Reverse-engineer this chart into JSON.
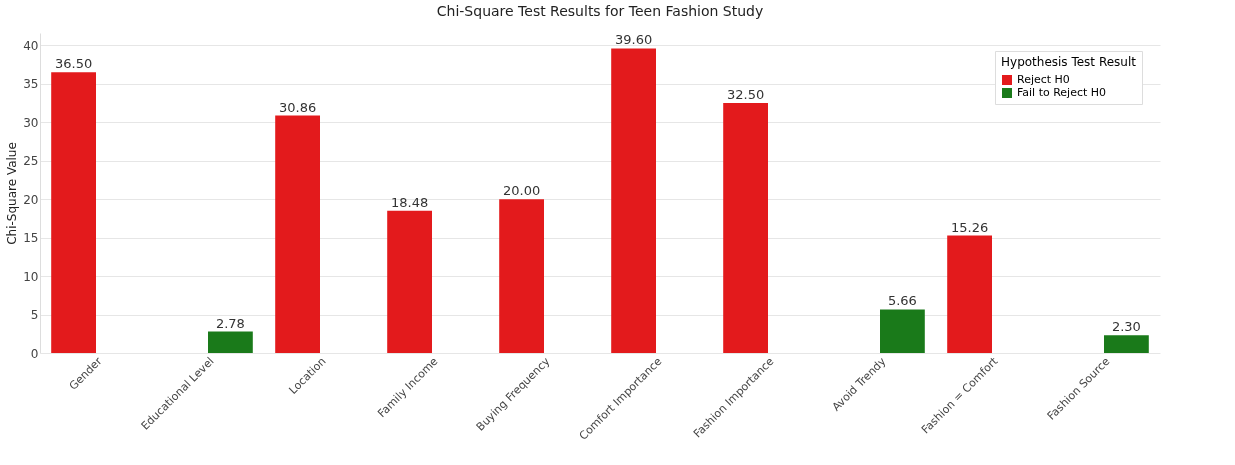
{
  "chart_data": {
    "type": "bar",
    "title": "Chi-Square Test Results for Teen Fashion Study",
    "ylabel": "Chi-Square Value",
    "legend_title": "Hypothesis Test Result",
    "categories": [
      "Gender",
      "Educational Level",
      "Location",
      "Family Income",
      "Buying Frequency",
      "Comfort Importance",
      "Fashion Importance",
      "Avoid Trendy",
      "Fashion = Comfort",
      "Fashion Source"
    ],
    "series": [
      {
        "name": "Reject H0",
        "color": "#e31a1c",
        "values": [
          36.5,
          null,
          30.86,
          18.48,
          20.0,
          39.6,
          32.5,
          null,
          15.26,
          null
        ],
        "value_labels": [
          "36.50",
          null,
          "30.86",
          "18.48",
          "20.00",
          "39.60",
          "32.50",
          null,
          "15.26",
          null
        ]
      },
      {
        "name": "Fail to Reject H0",
        "color": "#1a7a1a",
        "values": [
          null,
          2.78,
          null,
          null,
          null,
          null,
          null,
          5.66,
          null,
          2.3
        ],
        "value_labels": [
          null,
          "2.78",
          null,
          null,
          null,
          null,
          null,
          "5.66",
          null,
          "2.30"
        ]
      }
    ],
    "ylim": [
      0,
      41.6
    ],
    "yticks": [
      0,
      5,
      10,
      15,
      20,
      25,
      30,
      35,
      40
    ],
    "grid": "y",
    "legend": "top right"
  }
}
